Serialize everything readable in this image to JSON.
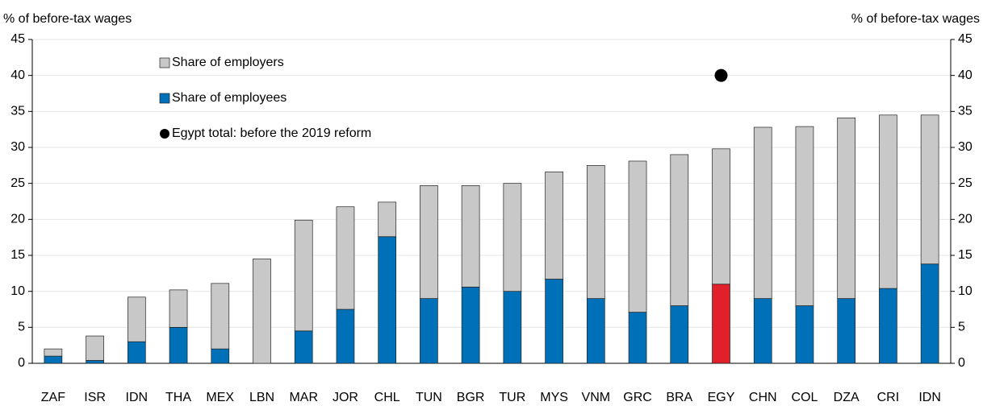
{
  "chart_data": {
    "type": "bar",
    "stacked": true,
    "y_label": "% of before-tax wages",
    "y2_label": "% of before-tax wages",
    "categories": [
      "ZAF",
      "ISR",
      "IDN",
      "THA",
      "MEX",
      "LBN",
      "MAR",
      "JOR",
      "CHL",
      "TUN",
      "BGR",
      "TUR",
      "MYS",
      "VNM",
      "GRC",
      "BRA",
      "EGY",
      "CHN",
      "COL",
      "DZA",
      "CRI",
      "IDN"
    ],
    "series": [
      {
        "name": "Share of employers",
        "type": "bar",
        "color": "#c8c8c8",
        "values": [
          1,
          3.4,
          6.2,
          5.2,
          9.1,
          14.5,
          15.4,
          14.25,
          4.8,
          15.7,
          14.1,
          15,
          14.9,
          18.5,
          21,
          21,
          18.8,
          23.8,
          24.9,
          25.1,
          24.1,
          20.7
        ]
      },
      {
        "name": "Share of employees",
        "type": "bar",
        "color": "#0070b8",
        "colors": [
          "#0070b8",
          "#0070b8",
          "#0070b8",
          "#0070b8",
          "#0070b8",
          "#0070b8",
          "#0070b8",
          "#0070b8",
          "#0070b8",
          "#0070b8",
          "#0070b8",
          "#0070b8",
          "#0070b8",
          "#0070b8",
          "#0070b8",
          "#0070b8",
          "#e0202a",
          "#0070b8",
          "#0070b8",
          "#0070b8",
          "#0070b8",
          "#0070b8"
        ],
        "values": [
          1,
          0.4,
          3,
          5,
          2,
          0,
          4.5,
          7.5,
          17.6,
          9,
          10.6,
          10,
          11.7,
          9,
          7.1,
          8,
          11,
          9,
          8,
          9,
          10.4,
          13.8
        ]
      },
      {
        "name": "Egypt total: before the 2019 reform",
        "type": "scatter",
        "color": "#000000",
        "values": [
          null,
          null,
          null,
          null,
          null,
          null,
          null,
          null,
          null,
          null,
          null,
          null,
          null,
          null,
          null,
          null,
          40,
          null,
          null,
          null,
          null,
          null
        ]
      }
    ],
    "ylim": [
      0,
      45
    ],
    "yticks": [
      0,
      5,
      10,
      15,
      20,
      25,
      30,
      35,
      40,
      45
    ],
    "y2lim": [
      0,
      45
    ],
    "y2ticks": [
      0,
      5,
      10,
      15,
      20,
      25,
      30,
      35,
      40,
      45
    ],
    "grid": true,
    "legend": "upper left"
  }
}
